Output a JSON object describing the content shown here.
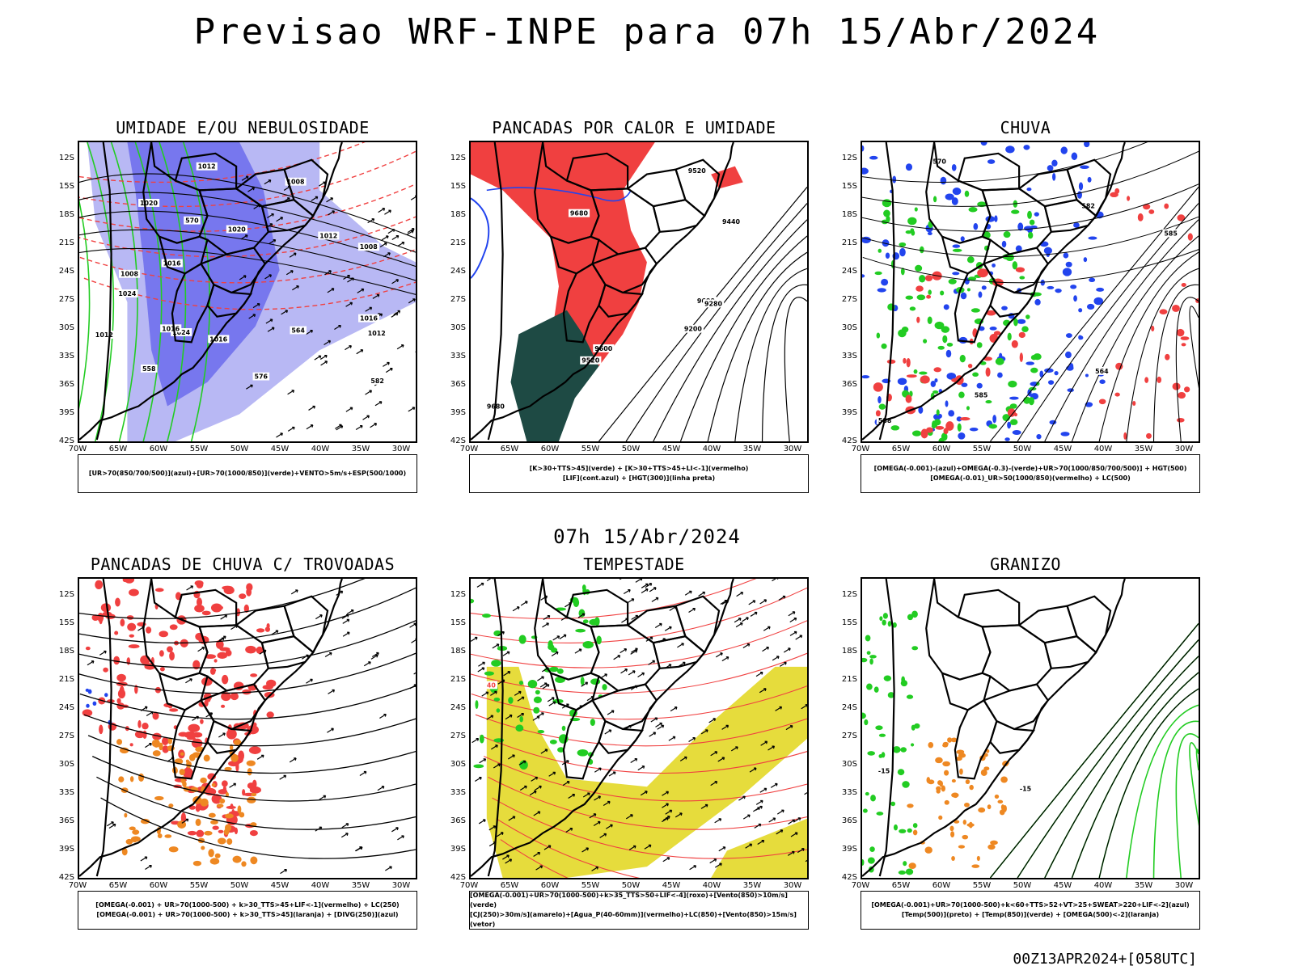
{
  "title": "Previsao WRF-INPE  para 07h 15/Abr/2024",
  "subtitle": "07h 15/Abr/2024",
  "footer": "00Z13APR2024+[058UTC]",
  "axes": {
    "y_ticks": [
      "12S",
      "15S",
      "18S",
      "21S",
      "24S",
      "27S",
      "30S",
      "33S",
      "36S",
      "39S",
      "42S"
    ],
    "x_ticks": [
      "70W",
      "65W",
      "60W",
      "55W",
      "50W",
      "45W",
      "40W",
      "35W",
      "30W"
    ]
  },
  "colors": {
    "blue_shade": "#7777ee",
    "light_blue": "#b8b8f4",
    "green": "#22cc22",
    "red": "#f04040",
    "dark_teal": "#1e4a44",
    "yellow": "#e6dc3c",
    "orange": "#ee8822",
    "contour": "#000000"
  },
  "panels": [
    {
      "title": "UMIDADE E/OU NEBULOSIDADE",
      "legend": [
        "[UR>70(850/700/500)](azul)+[UR>70(1000/850)](verde)+VENTO>5m/s+ESP(500/1000)"
      ],
      "labels": [
        "1012",
        "1012",
        "1008",
        "1016",
        "1016",
        "1016",
        "1020",
        "1024",
        "1012",
        "1008",
        "1008",
        "1012",
        "1016",
        "1020",
        "1024",
        "576",
        "570",
        "564",
        "558",
        "582"
      ]
    },
    {
      "title": "PANCADAS POR CALOR E UMIDADE",
      "legend": [
        "[K>30+TTS>45](verde) + [K>30+TTS>45+LI<-1](vermelho)",
        "[LIF](cont.azul) + [HGT(300)](linha preta)"
      ],
      "labels": [
        "9680",
        "9680",
        "9600",
        "9520",
        "9280",
        "9200",
        "9440",
        "9600",
        "9520"
      ]
    },
    {
      "title": "CHUVA",
      "legend": [
        "[OMEGA(-0.001)-(azul)+OMEGA(-0.3)-(verde)+UR>70(1000/850/700/500)] + HGT(500)",
        "[OMEGA(-0.01)_UR>50(1000/850)(vermelho) + LC(500)"
      ],
      "labels": [
        "588",
        "585",
        "585",
        "582",
        "570",
        "564"
      ]
    },
    {
      "title": "PANCADAS DE CHUVA C/ TROVOADAS",
      "legend": [
        "[OMEGA(-0.001) + UR>70(1000-500) + k>30_TTS>45+LIF<-1](vermelho) + LC(250)",
        "[OMEGA(-0.001) + UR>70(1000-500) + k>30_TTS>45](laranja) + [DIVG(250)](azul)"
      ],
      "labels": []
    },
    {
      "title": "TEMPESTADE",
      "legend": [
        "[OMEGA(-0.001)+UR>70(1000-500)+k>35_TTS>50+LIF<-4](roxo)+[Vento(850)>10m/s](verde)",
        "[CJ(250)>30m/s](amarelo)+[Agua_P(40-60mm)](vermelho)+LC(850)+[Vento(850)>15m/s](vetor)"
      ],
      "labels": [
        "40"
      ]
    },
    {
      "title": "GRANIZO",
      "legend": [
        "[OMEGA(-0.001)+UR>70(1000-500)+k<60+TTS>52+VT>25+SWEAT>220+LIF<-2](azul)",
        "[Temp(500)](preto) + [Temp(850)](verde) + [OMEGA(500)<-2](laranja)"
      ],
      "labels": [
        "-15",
        "-15"
      ]
    }
  ]
}
